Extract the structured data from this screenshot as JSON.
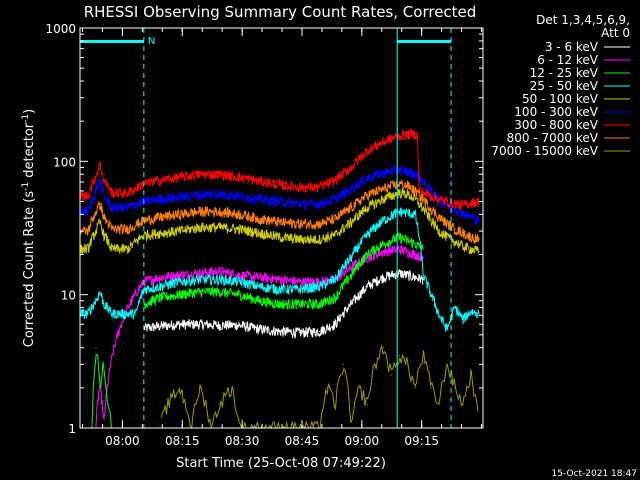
{
  "chart_data": {
    "type": "line",
    "title": "RHESSI Observing Summary Count Rates, Corrected",
    "xlabel": "Start Time (25-Oct-08 07:49:22)",
    "ylabel_main": "Corrected Count Rate (s",
    "ylabel_sup1": "-1",
    "ylabel_mid": " detector",
    "ylabel_sup2": "-1",
    "ylabel_end": ")",
    "x_range_minutes": [
      0,
      101
    ],
    "x_tick_labels": [
      "08:00",
      "08:15",
      "08:30",
      "08:45",
      "09:00",
      "09:15"
    ],
    "x_tick_minutes": [
      10.63,
      25.63,
      40.63,
      55.63,
      70.63,
      85.63
    ],
    "y_scale": "log",
    "ylim": [
      1,
      1000
    ],
    "y_tick_labels": [
      "1",
      "10",
      "100",
      "1000"
    ],
    "y_tick_values": [
      1,
      10,
      100,
      1000
    ],
    "legend_title_1": "Det 1,3,4,5,6,9,",
    "legend_title_2": "Att 0",
    "legend_position": "top-right",
    "timestamp": "15-Oct-2021 18:47",
    "night_marker": "N",
    "night_bars_minutes": [
      [
        0,
        16
      ],
      [
        79.5,
        93
      ]
    ],
    "vertical_markers_minutes": [
      0,
      16,
      79.5,
      93
    ],
    "series": [
      {
        "name": "3 - 6 keV",
        "color": "#ffffff",
        "x": [
          0,
          3,
          4,
          6,
          8,
          12,
          16,
          20,
          25,
          30,
          35,
          40,
          45,
          50,
          55,
          60,
          64,
          68,
          72,
          76,
          80,
          84,
          86
        ],
        "y": [
          null,
          null,
          null,
          null,
          null,
          null,
          5.6,
          5.8,
          6.0,
          6.0,
          5.9,
          5.9,
          5.5,
          5.3,
          5.2,
          5.3,
          6.0,
          8.5,
          11.5,
          13.5,
          14.5,
          13.5,
          13.0
        ]
      },
      {
        "name": "6 - 12 keV",
        "color": "#ff00ff",
        "x": [
          4,
          4.5,
          5,
          6,
          16,
          20,
          25,
          30,
          35,
          40,
          45,
          50,
          55,
          60,
          64,
          68,
          72,
          76,
          80,
          84,
          86
        ],
        "y": [
          1.05,
          1.6,
          2.1,
          1.05,
          12.5,
          13.5,
          14.0,
          14.5,
          15.0,
          14.0,
          13.5,
          13.0,
          12.5,
          12.5,
          13.0,
          16.0,
          19.0,
          21.0,
          22.0,
          20.0,
          19.0
        ]
      },
      {
        "name": "12 - 25 keV",
        "color": "#00ff00",
        "x": [
          16,
          20,
          25,
          30,
          35,
          40,
          45,
          50,
          55,
          60,
          64,
          68,
          72,
          76,
          80,
          84,
          86
        ],
        "y": [
          8.5,
          9.5,
          10.0,
          10.5,
          10.5,
          10.0,
          9.0,
          8.5,
          8.5,
          8.5,
          9.5,
          14.0,
          20.0,
          24.0,
          27.0,
          24.0,
          22.0
        ]
      },
      {
        "name": "25 - 50 keV",
        "color": "#00ffff",
        "x": [
          0,
          2,
          4,
          5,
          6,
          8,
          10,
          12,
          14,
          16,
          20,
          25,
          30,
          35,
          40,
          45,
          50,
          55,
          60,
          64,
          68,
          72,
          76,
          80,
          84,
          86,
          88,
          90,
          92,
          94,
          96,
          98,
          100
        ],
        "y": [
          7.2,
          7.2,
          9.0,
          10.5,
          8.5,
          7.2,
          7.2,
          7.2,
          7.2,
          11.0,
          11.5,
          12.5,
          13.0,
          13.0,
          12.5,
          11.5,
          11.0,
          11.0,
          11.5,
          13.0,
          19.0,
          28.0,
          36.0,
          42.0,
          40.0,
          14.0,
          10.0,
          7.0,
          5.5,
          8.0,
          6.5,
          7.5,
          7.2
        ]
      },
      {
        "name": "50 - 100 keV",
        "color": "#cccc00",
        "x": [
          0,
          2,
          4,
          5,
          6,
          8,
          12,
          16,
          20,
          25,
          30,
          35,
          40,
          45,
          50,
          55,
          60,
          64,
          68,
          72,
          76,
          80,
          82,
          84,
          86,
          88,
          90,
          92,
          94,
          96,
          98,
          100
        ],
        "y": [
          22.0,
          22.0,
          30.0,
          35.0,
          28.0,
          22.0,
          22.0,
          28.0,
          29.0,
          30.0,
          32.0,
          32.0,
          31.0,
          29.0,
          27.0,
          26.0,
          26.0,
          28.0,
          35.0,
          45.0,
          52.0,
          58.0,
          57.0,
          52.0,
          44.0,
          36.0,
          30.0,
          27.0,
          25.0,
          23.0,
          22.0,
          21.0
        ]
      },
      {
        "name": "100 - 300 keV",
        "color": "#0000ff",
        "x": [
          0,
          2,
          4,
          5,
          6,
          8,
          12,
          16,
          20,
          25,
          30,
          35,
          40,
          45,
          50,
          55,
          60,
          64,
          68,
          72,
          76,
          80,
          82,
          84,
          86,
          88,
          90,
          92,
          94,
          96,
          98,
          100
        ],
        "y": [
          42.0,
          42.0,
          60.0,
          72.0,
          55.0,
          45.0,
          45.0,
          50.0,
          52.0,
          54.0,
          56.0,
          57.0,
          55.0,
          52.0,
          50.0,
          48.0,
          48.0,
          52.0,
          62.0,
          75.0,
          82.0,
          86.0,
          84.0,
          80.0,
          70.0,
          60.0,
          52.0,
          47.0,
          44.0,
          41.0,
          38.0,
          36.0
        ]
      },
      {
        "name": "300 - 800 keV",
        "color": "#ff0000",
        "x": [
          0,
          2,
          4,
          5,
          6,
          8,
          12,
          16,
          20,
          25,
          30,
          35,
          40,
          45,
          50,
          55,
          60,
          64,
          68,
          72,
          76,
          80,
          83,
          84.5,
          85,
          88,
          90,
          92,
          94,
          96,
          98,
          100
        ],
        "y": [
          55.0,
          55.0,
          78.0,
          95.0,
          72.0,
          58.0,
          58.0,
          68.0,
          72.0,
          76.0,
          80.0,
          80.0,
          76.0,
          71.0,
          67.0,
          64.0,
          64.0,
          72.0,
          90.0,
          120.0,
          140.0,
          155.0,
          160.0,
          160.0,
          60.0,
          55.0,
          52.0,
          50.0,
          48.0,
          47.0,
          49.0,
          50.0
        ]
      },
      {
        "name": "800 - 7000 keV",
        "color": "#ff8000",
        "x": [
          0,
          2,
          4,
          5,
          6,
          8,
          12,
          16,
          20,
          25,
          30,
          35,
          40,
          45,
          50,
          55,
          60,
          64,
          68,
          72,
          76,
          80,
          82,
          84,
          86,
          88,
          90,
          92,
          94,
          96,
          98,
          100
        ],
        "y": [
          30.0,
          30.0,
          42.0,
          48.0,
          38.0,
          31.0,
          31.0,
          36.0,
          38.0,
          40.0,
          42.0,
          42.0,
          40.0,
          37.0,
          35.0,
          34.0,
          34.0,
          37.0,
          45.0,
          56.0,
          62.0,
          68.0,
          66.0,
          60.0,
          52.0,
          44.0,
          38.0,
          34.0,
          31.0,
          29.0,
          27.0,
          26.0
        ]
      },
      {
        "name": "7000 - 15000 keV",
        "color": "#999900",
        "x": [
          0,
          2,
          4,
          6,
          8,
          10,
          12,
          14,
          16,
          20,
          22,
          25,
          28,
          30,
          33,
          35,
          38,
          40,
          45,
          50,
          55,
          60,
          62,
          64,
          66,
          68,
          70,
          72,
          74,
          76,
          78,
          80,
          82,
          84,
          86,
          88,
          90,
          92,
          94,
          96,
          98,
          100
        ],
        "y": [
          null,
          null,
          null,
          null,
          null,
          null,
          null,
          null,
          null,
          1.0,
          1.5,
          2.0,
          1.0,
          2.0,
          1.0,
          1.5,
          2.0,
          1.0,
          1.0,
          1.0,
          1.0,
          1.0,
          2.0,
          1.5,
          3.0,
          1.0,
          2.0,
          1.5,
          3.0,
          4.0,
          2.5,
          3.5,
          3.0,
          2.0,
          3.5,
          2.0,
          1.5,
          3.0,
          2.0,
          1.5,
          2.5,
          1.0
        ]
      },
      {
        "name": "",
        "color": "#00ff00",
        "x": [
          3,
          4,
          5,
          6,
          7,
          8
        ],
        "y": [
          1.0,
          4.0,
          2.0,
          3.0,
          1.5,
          1.0
        ]
      }
    ]
  }
}
